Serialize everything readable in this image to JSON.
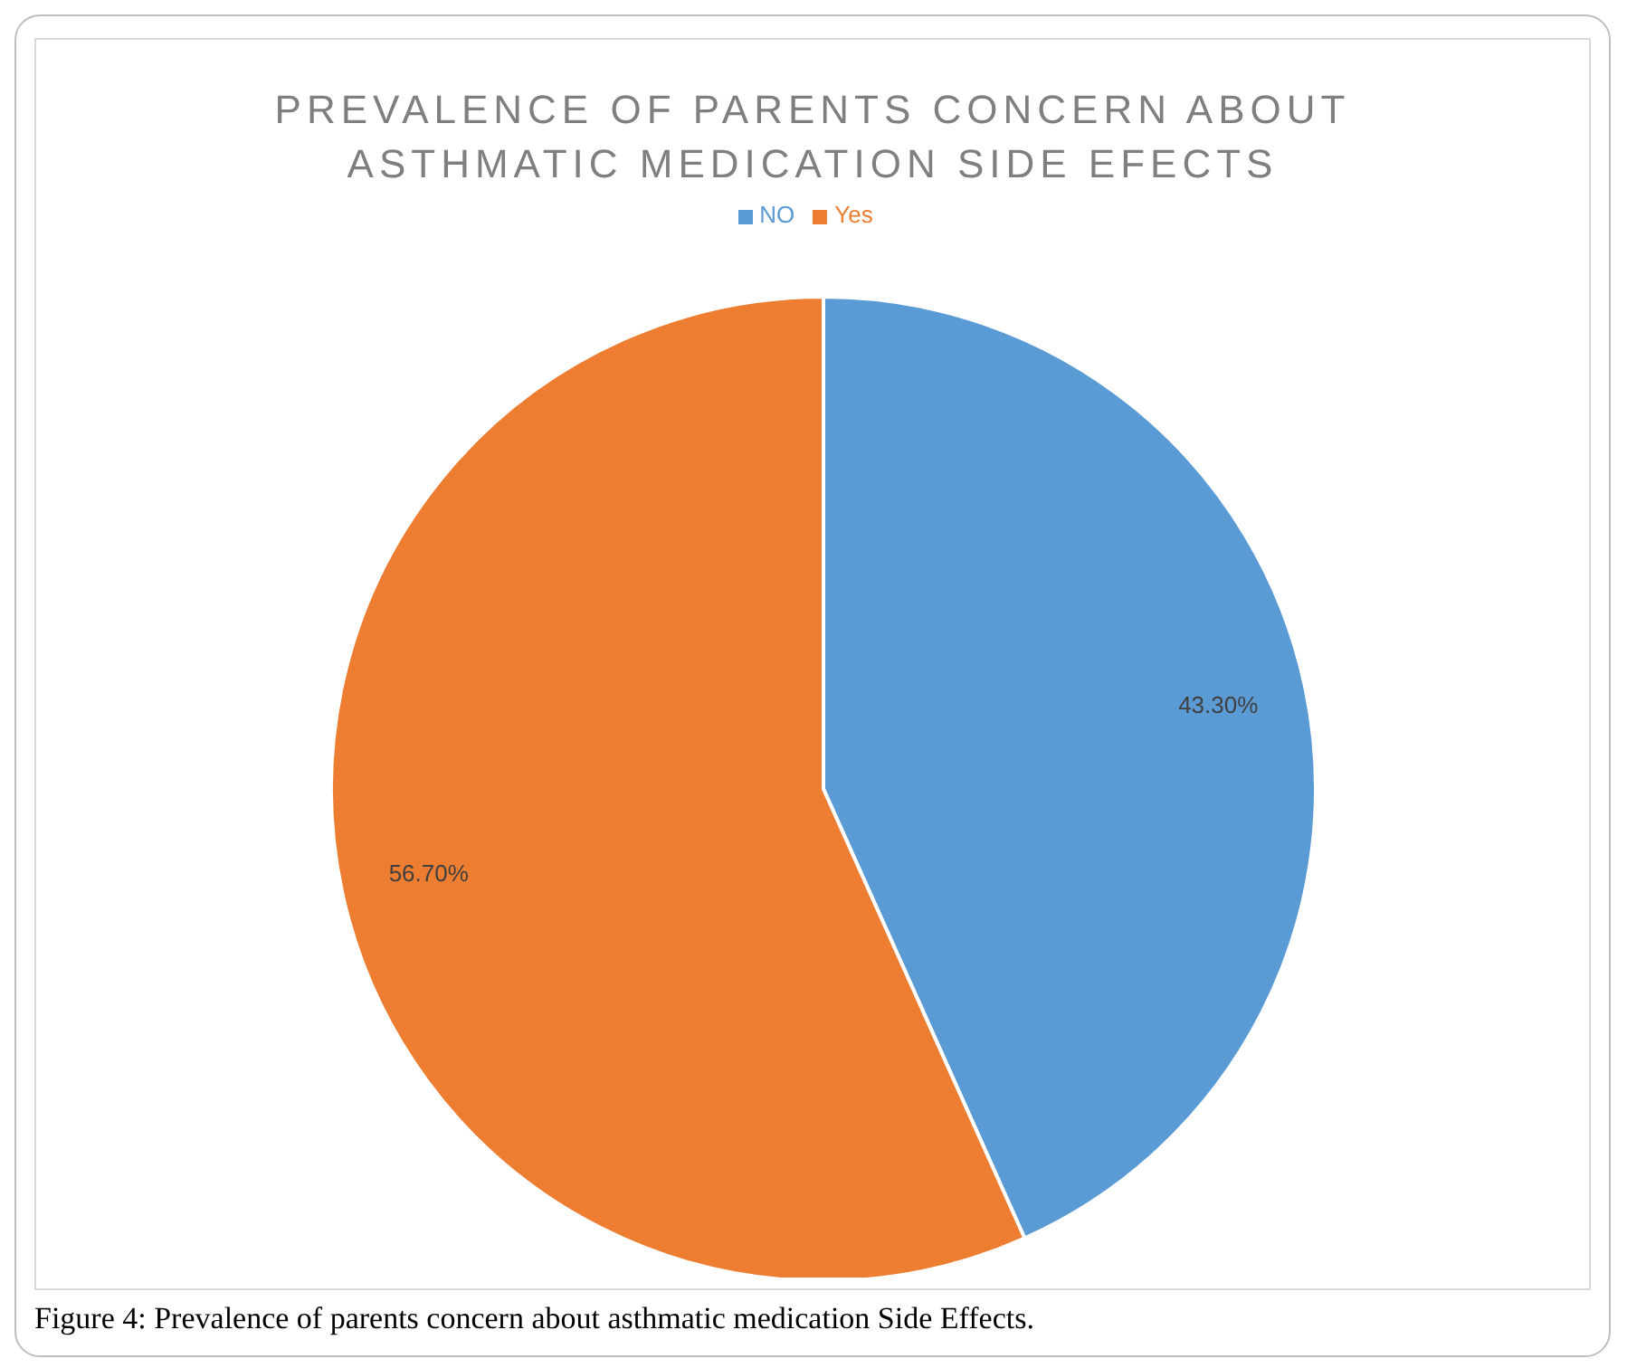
{
  "chart_data": {
    "type": "pie",
    "title": "PREVALENCE OF PARENTS CONCERN ABOUT ASTHMATIC MEDICATION SIDE EFECTS",
    "categories": [
      "NO",
      "Yes"
    ],
    "values": [
      43.3,
      56.7
    ],
    "colors": [
      "#5b9bd5",
      "#ed7d31"
    ],
    "value_labels": [
      "43.30%",
      "56.70%"
    ],
    "legend": "top",
    "annotations": [
      "Figure 4: Prevalence of parents concern about asthmatic medication Side Effects."
    ]
  }
}
